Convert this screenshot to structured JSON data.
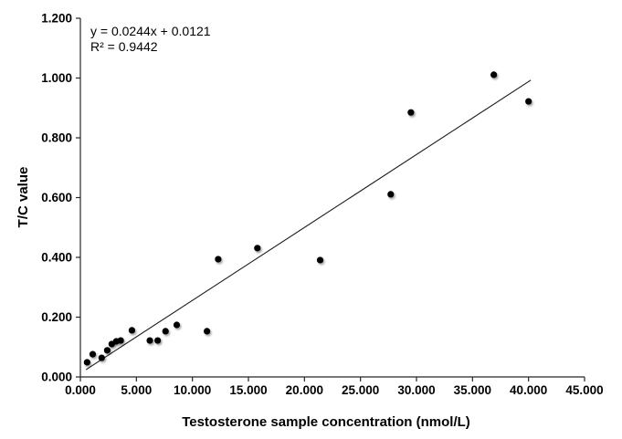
{
  "chart_data": {
    "type": "scatter",
    "title": "",
    "xlabel": "Testosterone sample concentration (nmol/L)",
    "ylabel": "T/C value",
    "xlim": [
      0,
      45
    ],
    "ylim": [
      0,
      1.2
    ],
    "x_ticks": [
      0,
      5,
      10,
      15,
      20,
      25,
      30,
      35,
      40,
      45
    ],
    "x_tick_labels": [
      "0.000",
      "5.000",
      "10.000",
      "15.000",
      "20.000",
      "25.000",
      "30.000",
      "35.000",
      "40.000",
      "45.000"
    ],
    "y_ticks": [
      0,
      0.2,
      0.4,
      0.6,
      0.8,
      1.0,
      1.2
    ],
    "y_tick_labels": [
      "0.000",
      "0.200",
      "0.400",
      "0.600",
      "0.800",
      "1.000",
      "1.200"
    ],
    "grid": false,
    "legend": "none",
    "points": [
      [
        0.6,
        0.049
      ],
      [
        1.1,
        0.076
      ],
      [
        1.9,
        0.064
      ],
      [
        2.4,
        0.089
      ],
      [
        2.8,
        0.11
      ],
      [
        3.2,
        0.119
      ],
      [
        3.6,
        0.122
      ],
      [
        4.6,
        0.156
      ],
      [
        6.2,
        0.122
      ],
      [
        6.9,
        0.122
      ],
      [
        7.6,
        0.153
      ],
      [
        8.6,
        0.174
      ],
      [
        11.3,
        0.153
      ],
      [
        12.3,
        0.394
      ],
      [
        15.8,
        0.431
      ],
      [
        21.4,
        0.391
      ],
      [
        27.7,
        0.611
      ],
      [
        29.5,
        0.885
      ],
      [
        36.9,
        1.011
      ],
      [
        40.0,
        0.922
      ]
    ],
    "trendline": {
      "slope": 0.0244,
      "intercept": 0.0121,
      "x_start": 0.5,
      "x_end": 40.2
    },
    "annotations": {
      "equation": "y = 0.0244x + 0.0121",
      "r_squared": "R² = 0.9442"
    }
  },
  "styles": {
    "background": "#ffffff",
    "axis_color": "#262626",
    "text_color": "#000000",
    "point_color": "#050505",
    "trendline_color": "#1a1a1a"
  }
}
